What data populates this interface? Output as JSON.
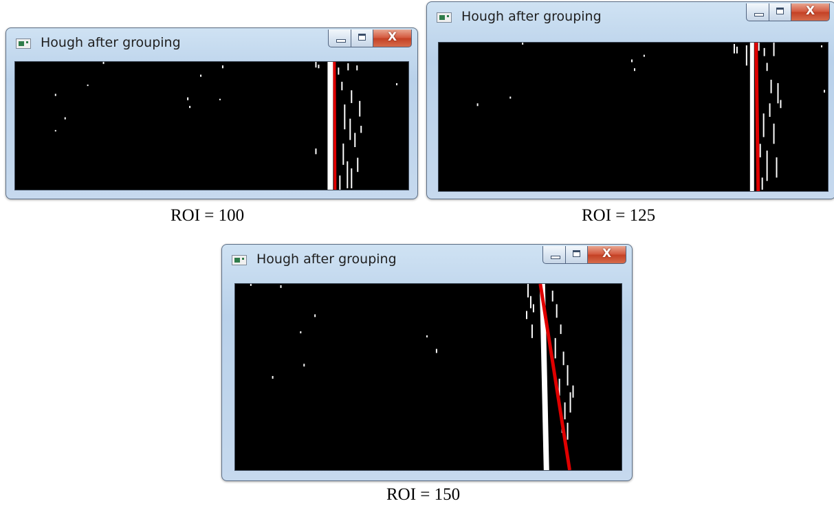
{
  "windows": [
    {
      "title": "Hough after grouping",
      "caption": "ROI = 100",
      "controls": {
        "minimize_icon": "minimize-icon",
        "maximize_icon": "maximize-icon",
        "close_label": "X"
      },
      "canvas_content": "white lane-marking edge points with red detected Hough line"
    },
    {
      "title": "Hough after grouping",
      "caption": "ROI = 125",
      "controls": {
        "minimize_icon": "minimize-icon",
        "maximize_icon": "maximize-icon",
        "close_label": "X"
      },
      "canvas_content": "white lane-marking edge points with red detected Hough line"
    },
    {
      "title": "Hough after grouping",
      "caption": "ROI = 150",
      "controls": {
        "minimize_icon": "minimize-icon",
        "maximize_icon": "maximize-icon",
        "close_label": "X"
      },
      "canvas_content": "white lane-marking edge points with red detected Hough line"
    }
  ],
  "colors": {
    "canvas": "#000000",
    "lane_points": "#ffffff",
    "hough_line": "#e00000",
    "close_button": "#c9452b"
  }
}
